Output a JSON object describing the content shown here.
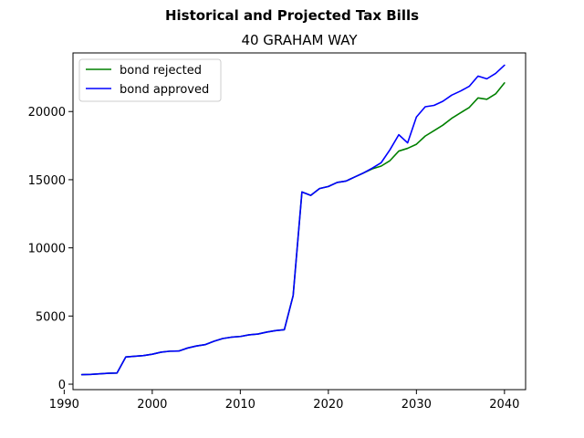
{
  "chart_data": {
    "type": "line",
    "suptitle": "Historical and Projected Tax Bills",
    "title": "40 GRAHAM WAY",
    "xlabel": "",
    "ylabel": "",
    "xlim": [
      1991,
      2042.4
    ],
    "ylim": [
      -400,
      24300
    ],
    "x_ticks": [
      1990,
      2000,
      2010,
      2020,
      2030,
      2040
    ],
    "x_tick_labels": [
      "1990",
      "2000",
      "2010",
      "2020",
      "2030",
      "2040"
    ],
    "y_ticks": [
      0,
      5000,
      10000,
      15000,
      20000
    ],
    "y_tick_labels": [
      "0",
      "5000",
      "10000",
      "15000",
      "20000"
    ],
    "grid": false,
    "legend_position": "top-left",
    "series": [
      {
        "name": "bond rejected",
        "color": "#008000",
        "points": [
          [
            1992,
            700
          ],
          [
            1993,
            720
          ],
          [
            1994,
            760
          ],
          [
            1995,
            800
          ],
          [
            1996,
            820
          ],
          [
            1997,
            2000
          ],
          [
            1998,
            2050
          ],
          [
            1999,
            2100
          ],
          [
            2000,
            2200
          ],
          [
            2001,
            2350
          ],
          [
            2002,
            2420
          ],
          [
            2003,
            2430
          ],
          [
            2004,
            2650
          ],
          [
            2005,
            2800
          ],
          [
            2006,
            2900
          ],
          [
            2007,
            3150
          ],
          [
            2008,
            3350
          ],
          [
            2009,
            3450
          ],
          [
            2010,
            3500
          ],
          [
            2011,
            3620
          ],
          [
            2012,
            3680
          ],
          [
            2013,
            3820
          ],
          [
            2014,
            3930
          ],
          [
            2015,
            4000
          ],
          [
            2016,
            6500
          ],
          [
            2017,
            14100
          ],
          [
            2018,
            13850
          ],
          [
            2019,
            14350
          ],
          [
            2020,
            14500
          ],
          [
            2021,
            14800
          ],
          [
            2022,
            14900
          ],
          [
            2023,
            15200
          ],
          [
            2024,
            15500
          ],
          [
            2025,
            15800
          ],
          [
            2026,
            16000
          ],
          [
            2027,
            16400
          ],
          [
            2028,
            17100
          ],
          [
            2029,
            17300
          ],
          [
            2030,
            17600
          ],
          [
            2031,
            18200
          ],
          [
            2032,
            18600
          ],
          [
            2033,
            19000
          ],
          [
            2034,
            19500
          ],
          [
            2035,
            19900
          ],
          [
            2036,
            20300
          ],
          [
            2037,
            21000
          ],
          [
            2038,
            20900
          ],
          [
            2039,
            21300
          ],
          [
            2040,
            22100
          ]
        ]
      },
      {
        "name": "bond approved",
        "color": "#0000ff",
        "points": [
          [
            1992,
            700
          ],
          [
            1993,
            720
          ],
          [
            1994,
            760
          ],
          [
            1995,
            800
          ],
          [
            1996,
            820
          ],
          [
            1997,
            2000
          ],
          [
            1998,
            2050
          ],
          [
            1999,
            2100
          ],
          [
            2000,
            2200
          ],
          [
            2001,
            2350
          ],
          [
            2002,
            2420
          ],
          [
            2003,
            2430
          ],
          [
            2004,
            2650
          ],
          [
            2005,
            2800
          ],
          [
            2006,
            2900
          ],
          [
            2007,
            3150
          ],
          [
            2008,
            3350
          ],
          [
            2009,
            3450
          ],
          [
            2010,
            3500
          ],
          [
            2011,
            3620
          ],
          [
            2012,
            3680
          ],
          [
            2013,
            3820
          ],
          [
            2014,
            3930
          ],
          [
            2015,
            4000
          ],
          [
            2016,
            6500
          ],
          [
            2017,
            14100
          ],
          [
            2018,
            13850
          ],
          [
            2019,
            14350
          ],
          [
            2020,
            14500
          ],
          [
            2021,
            14800
          ],
          [
            2022,
            14900
          ],
          [
            2023,
            15200
          ],
          [
            2024,
            15500
          ],
          [
            2025,
            15850
          ],
          [
            2026,
            16250
          ],
          [
            2027,
            17200
          ],
          [
            2028,
            18300
          ],
          [
            2029,
            17700
          ],
          [
            2030,
            19600
          ],
          [
            2031,
            20350
          ],
          [
            2032,
            20450
          ],
          [
            2033,
            20750
          ],
          [
            2034,
            21200
          ],
          [
            2035,
            21500
          ],
          [
            2036,
            21850
          ],
          [
            2037,
            22600
          ],
          [
            2038,
            22400
          ],
          [
            2039,
            22800
          ],
          [
            2040,
            23400
          ]
        ]
      }
    ]
  }
}
